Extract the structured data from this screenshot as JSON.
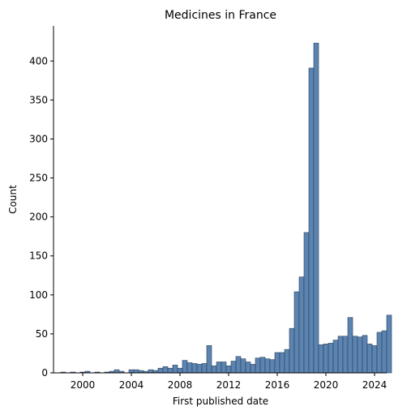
{
  "chart_data": {
    "type": "bar",
    "title": "Medicines in France",
    "xlabel": "First published date",
    "ylabel": "Count",
    "bar_color": "#5b84b1",
    "edge_color": "#2b3f5a",
    "grid": false,
    "xlim": [
      1997.6,
      2025.0
    ],
    "ylim": [
      0,
      445
    ],
    "x_ticks": [
      2000,
      2004,
      2008,
      2012,
      2016,
      2020,
      2024
    ],
    "x_tick_labels": [
      "2000",
      "2004",
      "2008",
      "2012",
      "2016",
      "2020",
      "2024"
    ],
    "y_ticks": [
      0,
      50,
      100,
      150,
      200,
      250,
      300,
      350,
      400
    ],
    "y_tick_labels": [
      "0",
      "50",
      "100",
      "150",
      "200",
      "250",
      "300",
      "350",
      "400"
    ],
    "bin_start": 1998.2,
    "bin_width": 0.4,
    "values": [
      1,
      0,
      1,
      0,
      1,
      2,
      0,
      1,
      0,
      1,
      2,
      4,
      2,
      0,
      4,
      4,
      3,
      2,
      4,
      3,
      6,
      8,
      6,
      10,
      6,
      16,
      13,
      12,
      11,
      12,
      35,
      9,
      14,
      14,
      9,
      15,
      21,
      18,
      14,
      11,
      19,
      20,
      18,
      17,
      26,
      26,
      30,
      57,
      104,
      123,
      180,
      391,
      423,
      36,
      37,
      38,
      42,
      47,
      47,
      71,
      47,
      46,
      48,
      37,
      35,
      52,
      54,
      74
    ]
  }
}
